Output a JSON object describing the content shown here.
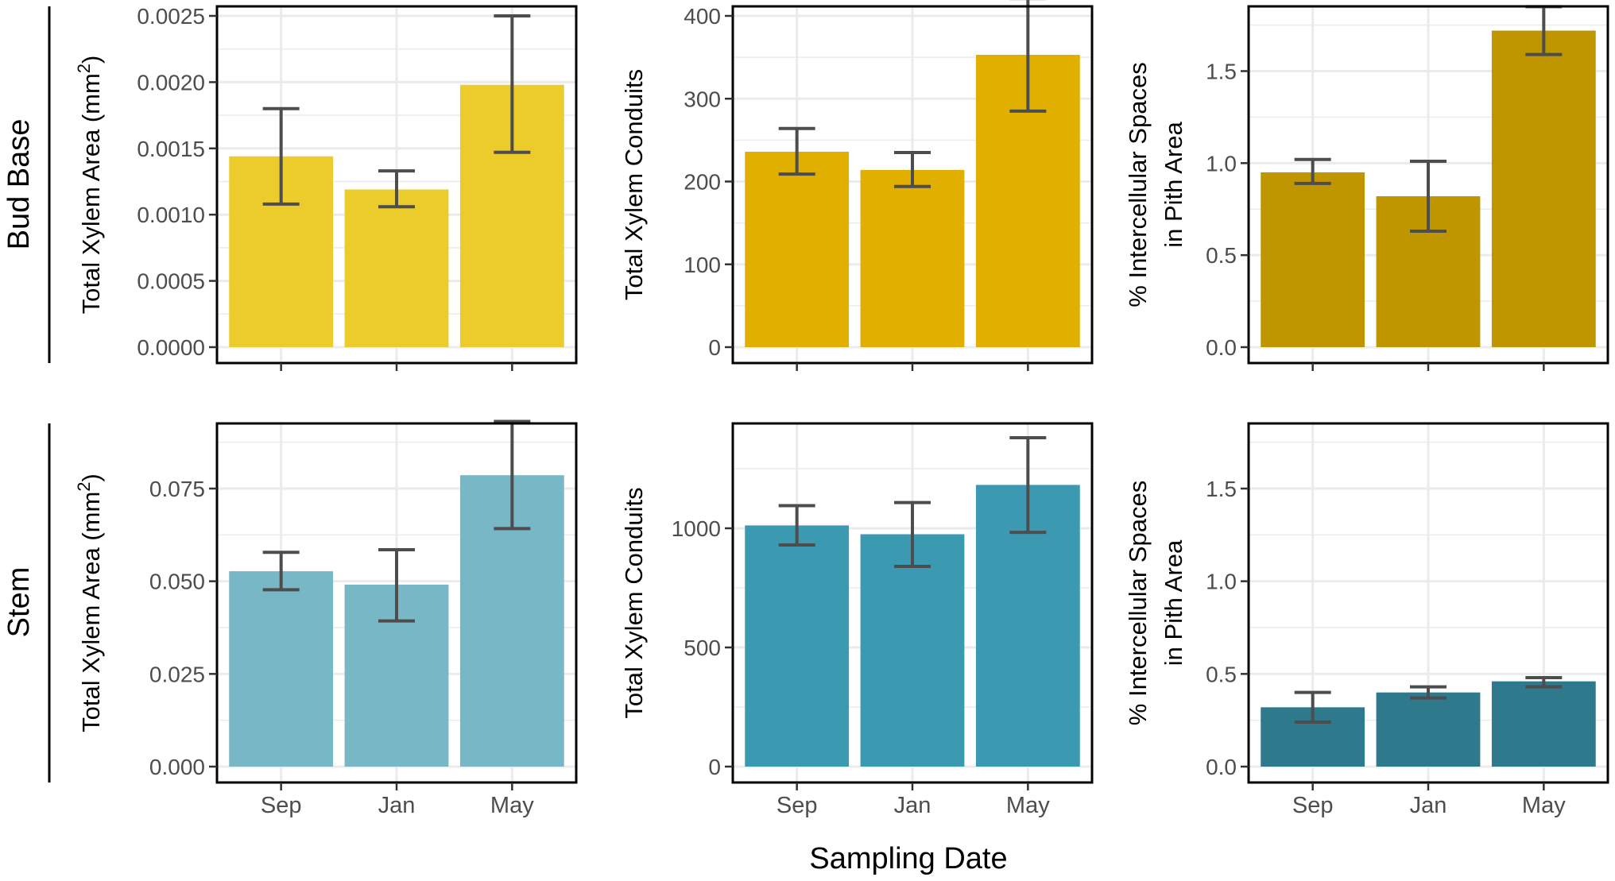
{
  "figure": {
    "x_axis_title": "Sampling Date",
    "row_labels": [
      "Bud Base",
      "Stem"
    ]
  },
  "colors": {
    "bud_area": "#EBCC2A",
    "bud_conduits": "#E1AF00",
    "bud_pith": "#BF9500",
    "stem_area": "#78B7C5",
    "stem_conduits": "#3B9AB2",
    "stem_pith": "#2E7A8C",
    "error_bar": "#4D4D4D",
    "grid": "#EBEBEB",
    "panel_border": "#000000",
    "tick_text": "#4D4D4D"
  },
  "chart_data": [
    {
      "id": "bud-area",
      "type": "bar",
      "row": "Bud Base",
      "categories": [
        "Sep",
        "Jan",
        "May"
      ],
      "values": [
        0.00144,
        0.00119,
        0.00198
      ],
      "errors_low": [
        0.00108,
        0.00106,
        0.00147
      ],
      "errors_high": [
        0.0018,
        0.00133,
        0.0025
      ],
      "ylabel_pre": "Total Xylem Area (mm",
      "ylabel_sup": "2",
      "ylabel_post": ")",
      "ylim": [
        0,
        0.0025
      ],
      "yticks": [
        0,
        0.0005,
        0.001,
        0.0015,
        0.002,
        0.0025
      ],
      "ytick_labels": [
        "0.0000",
        "0.0005",
        "0.0010",
        "0.0015",
        "0.0020",
        "0.0025"
      ],
      "color_key": "bud_area"
    },
    {
      "id": "bud-conduits",
      "type": "bar",
      "row": "Bud Base",
      "categories": [
        "Sep",
        "Jan",
        "May"
      ],
      "values": [
        236,
        214,
        353
      ],
      "errors_low": [
        209,
        194,
        285
      ],
      "errors_high": [
        264,
        235,
        421
      ],
      "ylabel": "Total Xylem Conduits",
      "ylim": [
        0,
        400
      ],
      "yticks": [
        0,
        100,
        200,
        300,
        400
      ],
      "ytick_labels": [
        "0",
        "100",
        "200",
        "300",
        "400"
      ],
      "color_key": "bud_conduits"
    },
    {
      "id": "bud-pith",
      "type": "bar",
      "row": "Bud Base",
      "categories": [
        "Sep",
        "Jan",
        "May"
      ],
      "values": [
        0.95,
        0.82,
        1.72
      ],
      "errors_low": [
        0.89,
        0.63,
        1.59
      ],
      "errors_high": [
        1.02,
        1.01,
        1.85
      ],
      "ylabel_lines": [
        "% Intercellular Spaces",
        "in Pith Area"
      ],
      "ylim": [
        0,
        1.8
      ],
      "yticks": [
        0,
        0.5,
        1.0,
        1.5
      ],
      "ytick_labels": [
        "0.0",
        "0.5",
        "1.0",
        "1.5"
      ],
      "color_key": "bud_pith"
    },
    {
      "id": "stem-area",
      "type": "bar",
      "row": "Stem",
      "categories": [
        "Sep",
        "Jan",
        "May"
      ],
      "values": [
        0.0527,
        0.0491,
        0.0786
      ],
      "errors_low": [
        0.0477,
        0.0393,
        0.0642
      ],
      "errors_high": [
        0.0578,
        0.0585,
        0.0931
      ],
      "ylabel_pre": "Total Xylem Area (mm",
      "ylabel_sup": "2",
      "ylabel_post": ")",
      "ylim": [
        0,
        0.09
      ],
      "yticks": [
        0,
        0.025,
        0.05,
        0.075
      ],
      "ytick_labels": [
        "0.000",
        "0.025",
        "0.050",
        "0.075"
      ],
      "color_key": "stem_area"
    },
    {
      "id": "stem-conduits",
      "type": "bar",
      "row": "Stem",
      "categories": [
        "Sep",
        "Jan",
        "May"
      ],
      "values": [
        1012,
        975,
        1182
      ],
      "errors_low": [
        930,
        840,
        983
      ],
      "errors_high": [
        1095,
        1108,
        1380
      ],
      "ylabel": "Total Xylem Conduits",
      "ylim": [
        0,
        1400
      ],
      "yticks": [
        0,
        500,
        1000
      ],
      "ytick_labels": [
        "0",
        "500",
        "1000"
      ],
      "color_key": "stem_conduits"
    },
    {
      "id": "stem-pith",
      "type": "bar",
      "row": "Stem",
      "categories": [
        "Sep",
        "Jan",
        "May"
      ],
      "values": [
        0.32,
        0.4,
        0.46
      ],
      "errors_low": [
        0.24,
        0.37,
        0.43
      ],
      "errors_high": [
        0.4,
        0.43,
        0.48
      ],
      "ylabel_lines": [
        "% Intercellular Spaces",
        "in Pith Area"
      ],
      "ylim": [
        0,
        1.8
      ],
      "yticks": [
        0,
        0.5,
        1.0,
        1.5
      ],
      "ytick_labels": [
        "0.0",
        "0.5",
        "1.0",
        "1.5"
      ],
      "color_key": "stem_pith"
    }
  ]
}
